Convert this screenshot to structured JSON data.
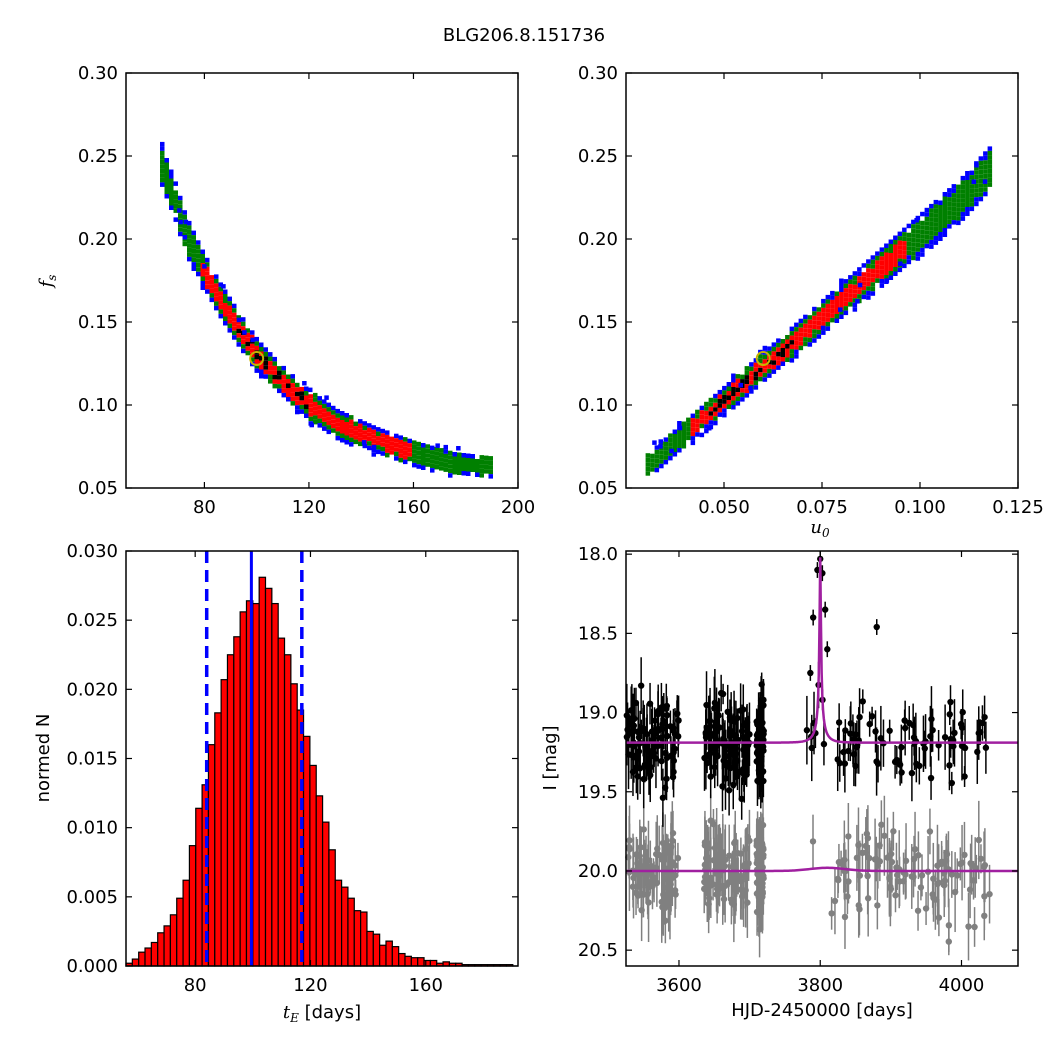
{
  "figure": {
    "title": "BLG206.8.151736"
  },
  "chart_data": [
    {
      "type": "scatter",
      "name": "tE-fs-posterior",
      "xlabel": "",
      "ylabel": "f_s",
      "xlim": [
        50,
        200
      ],
      "ylim": [
        0.05,
        0.3
      ],
      "xticks": [
        "80",
        "120",
        "160",
        "200"
      ],
      "yticks": [
        "0.05",
        "0.10",
        "0.15",
        "0.20",
        "0.25",
        "0.30"
      ],
      "colors": {
        "outer": "#0000ff",
        "mid": "#008000",
        "inner": "#ff0000",
        "core": "#000000",
        "best": "#c8b400"
      },
      "ridge": [
        [
          63,
          0.245
        ],
        [
          68,
          0.225
        ],
        [
          72,
          0.205
        ],
        [
          78,
          0.185
        ],
        [
          85,
          0.165
        ],
        [
          92,
          0.148
        ],
        [
          100,
          0.13
        ],
        [
          108,
          0.117
        ],
        [
          118,
          0.103
        ],
        [
          130,
          0.09
        ],
        [
          145,
          0.08
        ],
        [
          160,
          0.072
        ],
        [
          175,
          0.066
        ],
        [
          190,
          0.064
        ]
      ],
      "best_fit": {
        "x": 100,
        "y": 0.128
      }
    },
    {
      "type": "scatter",
      "name": "u0-fs-posterior",
      "xlabel": "u_0",
      "ylabel": "",
      "xlim": [
        0.025,
        0.125
      ],
      "ylim": [
        0.05,
        0.3
      ],
      "xticks": [
        "0.050",
        "0.075",
        "0.100",
        "0.125"
      ],
      "yticks": [
        "0.05",
        "0.10",
        "0.15",
        "0.20",
        "0.25",
        "0.30"
      ],
      "ridge": [
        [
          0.03,
          0.065
        ],
        [
          0.04,
          0.085
        ],
        [
          0.05,
          0.105
        ],
        [
          0.06,
          0.125
        ],
        [
          0.07,
          0.145
        ],
        [
          0.08,
          0.165
        ],
        [
          0.09,
          0.185
        ],
        [
          0.1,
          0.205
        ],
        [
          0.11,
          0.225
        ],
        [
          0.118,
          0.245
        ]
      ],
      "best_fit": {
        "x": 0.06,
        "y": 0.128
      }
    },
    {
      "type": "bar",
      "name": "tE-histogram",
      "xlabel": "t_E  [days]",
      "ylabel": "normed N",
      "xlim": [
        56,
        192
      ],
      "ylim": [
        0,
        0.03
      ],
      "xticks": [
        "80",
        "120",
        "160"
      ],
      "yticks": [
        "0.000",
        "0.005",
        "0.010",
        "0.015",
        "0.020",
        "0.025",
        "0.030"
      ],
      "bin_start": 56,
      "bin_width": 2.2,
      "values": [
        0.0002,
        0.0005,
        0.001,
        0.0013,
        0.0017,
        0.0024,
        0.0029,
        0.0037,
        0.0049,
        0.0062,
        0.0087,
        0.0114,
        0.0131,
        0.016,
        0.0183,
        0.0207,
        0.0225,
        0.0238,
        0.0256,
        0.0264,
        0.0262,
        0.0281,
        0.0273,
        0.0262,
        0.0237,
        0.0225,
        0.0204,
        0.0185,
        0.0166,
        0.0145,
        0.0123,
        0.0104,
        0.0084,
        0.0062,
        0.0057,
        0.0049,
        0.004,
        0.0039,
        0.0025,
        0.0023,
        0.0015,
        0.0018,
        0.0014,
        0.0009,
        0.0007,
        0.0006,
        0.0006,
        0.0004,
        0.0004,
        0.0002,
        0.0003,
        0.0002,
        0.0002,
        0.0001,
        0.0001,
        0.0001,
        0.0001,
        0.0001,
        0.0001,
        0.0001,
        0.0001
      ],
      "median": 99.5,
      "interval": [
        84,
        117
      ]
    },
    {
      "type": "line",
      "name": "light-curve",
      "xlabel": "HJD-2450000 [days]",
      "ylabel": "I [mag]",
      "xlim": [
        3525,
        4080
      ],
      "ylim": [
        20.6,
        17.98
      ],
      "xticks": [
        "3600",
        "3800",
        "4000"
      ],
      "yticks": [
        "18.0",
        "18.5",
        "19.0",
        "19.5",
        "20.0",
        "20.5"
      ],
      "model": {
        "t0": 3800,
        "u0": 0.06,
        "tE": 100,
        "fs": 0.128,
        "baseline": 19.19,
        "peak": 18.02
      },
      "residual_baseline": 20.0,
      "series": [
        {
          "name": "data",
          "color": "#000000"
        },
        {
          "name": "residuals",
          "color": "#808080"
        }
      ]
    }
  ]
}
